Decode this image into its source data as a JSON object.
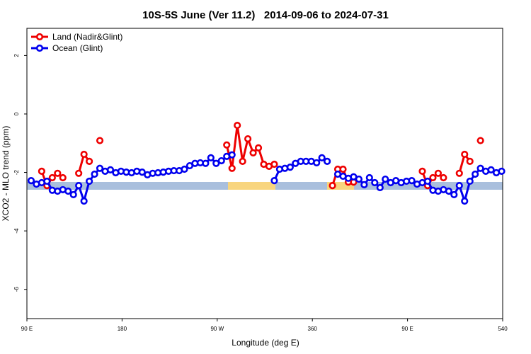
{
  "chart_data": {
    "type": "line",
    "title": "10S-5S June (Ver 11.2)   2014-09-06 to 2024-07-31",
    "x_label": "Longitude (deg E)",
    "y_label": "XCO2 - MLO trend (ppm)",
    "x": [
      94,
      99,
      104,
      109,
      114,
      119,
      124,
      129,
      134,
      139,
      144,
      149,
      154,
      159,
      164,
      169,
      174,
      179,
      184,
      189,
      194,
      199,
      204,
      209,
      214,
      219,
      224,
      229,
      234,
      239,
      244,
      249,
      254,
      259,
      264,
      269,
      274,
      279,
      284,
      289,
      294,
      299,
      304,
      309,
      314,
      319,
      324,
      329,
      334,
      339,
      344,
      349,
      354,
      359,
      364,
      369,
      374,
      379,
      384,
      389,
      394,
      399,
      404,
      409,
      414,
      419,
      424,
      429,
      434,
      439,
      444,
      449,
      454,
      459,
      464,
      469,
      474,
      479,
      484,
      489,
      494,
      499,
      504,
      509,
      514,
      519,
      524,
      529,
      534,
      539
    ],
    "series": [
      {
        "name": "Land (Nadir&Glint)",
        "color": "#ee0000",
        "values": [
          null,
          null,
          -1.96,
          -2.45,
          -2.18,
          -2.03,
          -2.18,
          null,
          null,
          -2.03,
          -1.38,
          -1.62,
          null,
          -0.91,
          null,
          null,
          null,
          null,
          null,
          null,
          null,
          null,
          null,
          null,
          null,
          null,
          null,
          null,
          null,
          null,
          null,
          null,
          null,
          null,
          null,
          null,
          null,
          -1.06,
          -1.86,
          -0.39,
          -1.62,
          -0.85,
          -1.33,
          -1.16,
          -1.72,
          -1.79,
          -1.72,
          null,
          null,
          null,
          null,
          null,
          null,
          null,
          null,
          null,
          null,
          -2.45,
          -1.89,
          -1.89,
          -2.33,
          -2.33,
          null,
          null,
          null,
          null,
          null,
          null,
          null,
          null,
          null,
          null,
          null,
          null,
          -1.96,
          -2.45,
          -2.18,
          -2.03,
          -2.18,
          null,
          null,
          -2.03,
          -1.38,
          -1.62,
          null,
          -0.91,
          null,
          null,
          null,
          null
        ]
      },
      {
        "name": "Ocean (Glint)",
        "color": "#0000ee",
        "values": [
          -2.28,
          -2.4,
          -2.35,
          -2.3,
          -2.61,
          -2.64,
          -2.59,
          -2.64,
          -2.76,
          -2.45,
          -2.98,
          -2.3,
          -2.06,
          -1.86,
          -1.96,
          -1.91,
          -2.01,
          -1.96,
          -1.99,
          -2.01,
          -1.96,
          -1.99,
          -2.08,
          -2.03,
          -2.01,
          -1.99,
          -1.96,
          -1.94,
          -1.94,
          -1.89,
          -1.77,
          -1.69,
          -1.67,
          -1.69,
          -1.5,
          -1.69,
          -1.6,
          -1.45,
          -1.4,
          null,
          null,
          null,
          null,
          null,
          null,
          null,
          -2.28,
          -1.89,
          -1.86,
          -1.82,
          -1.69,
          -1.62,
          -1.62,
          -1.62,
          -1.67,
          -1.5,
          -1.62,
          null,
          -2.06,
          -2.13,
          -2.2,
          -2.15,
          -2.23,
          -2.42,
          -2.18,
          -2.35,
          -2.52,
          -2.23,
          -2.35,
          -2.28,
          -2.35,
          -2.3,
          -2.28,
          -2.4,
          -2.35,
          -2.3,
          -2.61,
          -2.64,
          -2.59,
          -2.64,
          -2.76,
          -2.45,
          -2.98,
          -2.3,
          -2.06,
          -1.86,
          -1.96,
          -1.91,
          -2.01,
          -1.96
        ]
      }
    ],
    "xlim": [
      90,
      540
    ],
    "xticks": [
      {
        "value": 90,
        "label": "90 E"
      },
      180,
      {
        "value": 270,
        "label": "90 W"
      },
      360,
      {
        "value": 450,
        "label": "90 E"
      },
      540
    ],
    "ylim": [
      -7,
      2.93
    ],
    "yticks": [
      -6,
      -4,
      -2,
      0,
      2
    ],
    "legend": "top-left"
  }
}
